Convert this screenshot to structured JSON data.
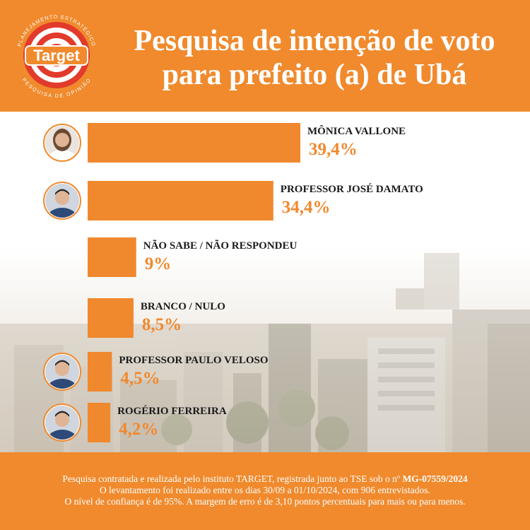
{
  "header": {
    "title_line1": "Pesquisa de intenção de voto",
    "title_line2": "para prefeito (a) de Ubá"
  },
  "logo": {
    "brand": "Target",
    "ring_top": "PLANEJAMENTO ESTRATÉGICO",
    "ring_bottom": "PESQUISA DE OPINIÃO"
  },
  "colors": {
    "orange": "#f08a2d",
    "bar": "#f0882e",
    "label": "#1a1a1a",
    "value": "#f0882e"
  },
  "chart_data": {
    "type": "bar",
    "orientation": "horizontal",
    "categories": [
      "MÔNICA VALLONE",
      "PROFESSOR JOSÉ DAMATO",
      "NÃO SABE / NÃO RESPONDEU",
      "BRANCO / NULO",
      "PROFESSOR PAULO VELOSO",
      "ROGÉRIO FERREIRA"
    ],
    "values": [
      39.4,
      34.4,
      9,
      8.5,
      4.5,
      4.2
    ],
    "value_labels": [
      "39,4%",
      "34,4%",
      "9%",
      "8,5%",
      "4,5%",
      "4,2%"
    ],
    "has_photo": [
      true,
      true,
      false,
      false,
      true,
      true
    ],
    "photo_icons": [
      "candidate-photo-woman",
      "candidate-photo-man",
      null,
      null,
      "candidate-photo-man",
      "candidate-photo-man"
    ]
  },
  "footer": {
    "line1_text": "Pesquisa contratada e realizada pelo instituto TARGET,  registrada junto ao TSE sob o nº ",
    "line1_reg": "MG-07559/2024",
    "line2": "O levantamento foi realizado entre os dias 30/09 a 01/10/2024, com 906 entrevistados.",
    "line3": "O nível de confiança é de 95%. A margem de erro é de 3,10 pontos percentuais para mais ou para menos."
  }
}
